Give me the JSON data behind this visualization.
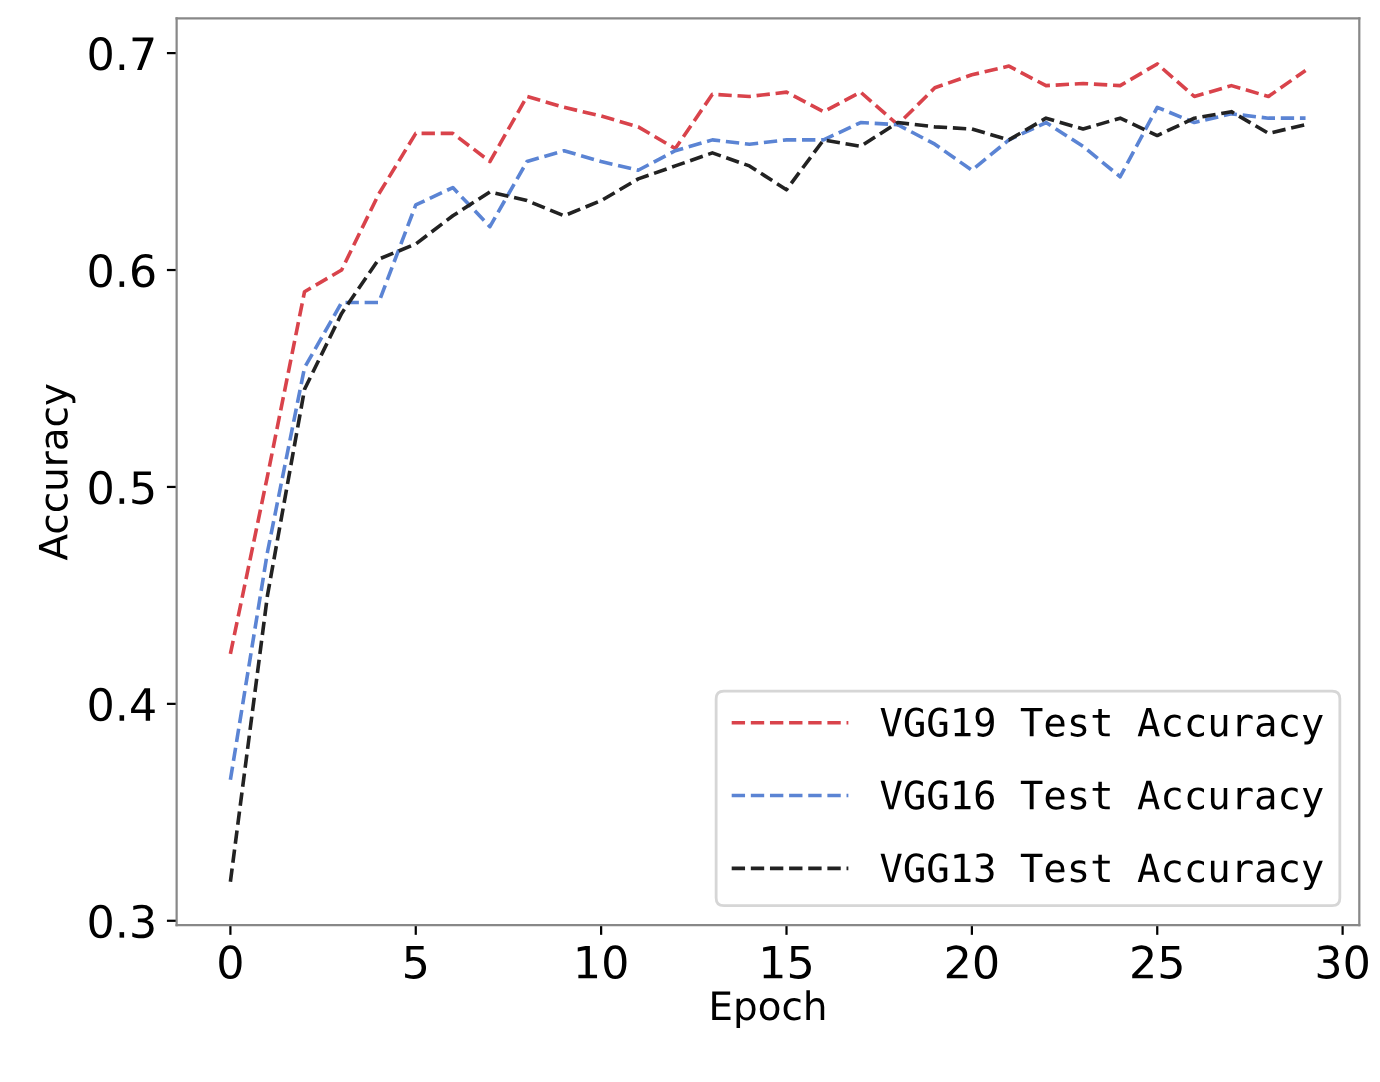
{
  "chart_data": {
    "type": "line",
    "xlabel": "Epoch",
    "ylabel": "Accuracy",
    "x": [
      0,
      1,
      2,
      3,
      4,
      5,
      6,
      7,
      8,
      9,
      10,
      11,
      12,
      13,
      14,
      15,
      16,
      17,
      18,
      19,
      20,
      21,
      22,
      23,
      24,
      25,
      26,
      27,
      28,
      29
    ],
    "series": [
      {
        "name": "VGG19 Test Accuracy",
        "color": "#d9434b",
        "values": [
          0.423,
          0.505,
          0.59,
          0.6,
          0.635,
          0.663,
          0.663,
          0.65,
          0.68,
          0.675,
          0.671,
          0.666,
          0.656,
          0.681,
          0.68,
          0.682,
          0.673,
          0.682,
          0.667,
          0.684,
          0.69,
          0.694,
          0.685,
          0.686,
          0.685,
          0.695,
          0.68,
          0.685,
          0.68,
          0.692
        ]
      },
      {
        "name": "VGG16 Test Accuracy",
        "color": "#5b84d4",
        "values": [
          0.365,
          0.47,
          0.555,
          0.585,
          0.585,
          0.63,
          0.638,
          0.62,
          0.65,
          0.655,
          0.65,
          0.646,
          0.655,
          0.66,
          0.658,
          0.66,
          0.66,
          0.668,
          0.667,
          0.658,
          0.646,
          0.66,
          0.668,
          0.657,
          0.643,
          0.675,
          0.668,
          0.672,
          0.67,
          0.67
        ]
      },
      {
        "name": "VGG13 Test Accuracy",
        "color": "#222222",
        "values": [
          0.318,
          0.45,
          0.545,
          0.58,
          0.605,
          0.612,
          0.625,
          0.636,
          0.632,
          0.625,
          0.632,
          0.642,
          0.648,
          0.654,
          0.648,
          0.637,
          0.66,
          0.657,
          0.668,
          0.666,
          0.665,
          0.66,
          0.67,
          0.665,
          0.67,
          0.662,
          0.67,
          0.673,
          0.663,
          0.667
        ]
      }
    ],
    "xlim": [
      -1.45,
      30.45
    ],
    "ylim": [
      0.298,
      0.716
    ],
    "xticks": [
      0,
      5,
      10,
      15,
      20,
      25,
      30
    ],
    "yticks": [
      0.3,
      0.4,
      0.5,
      0.6,
      0.7
    ],
    "grid": false,
    "legend": "bottom right",
    "marker": "none",
    "line_style": "dashed"
  }
}
